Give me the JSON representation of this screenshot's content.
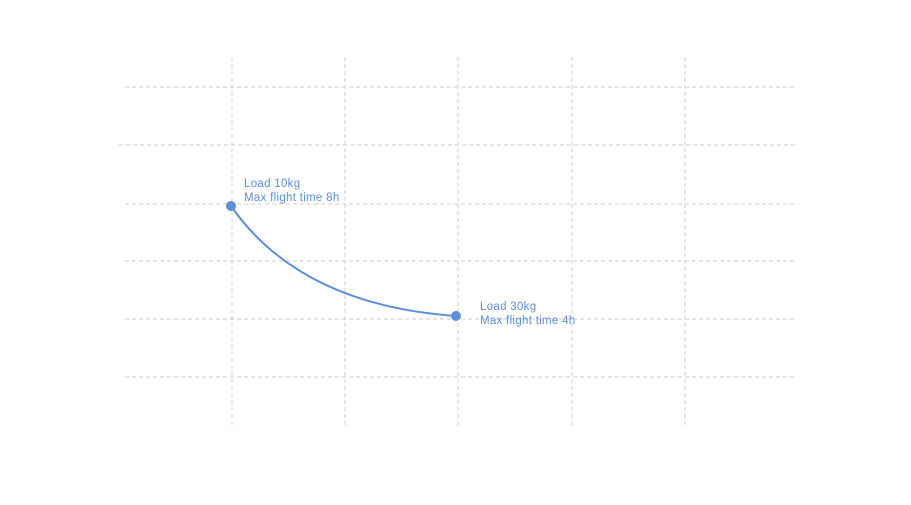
{
  "annotations": [
    {
      "lines": [
        "Load 10kg",
        "Max flight time 8h"
      ]
    },
    {
      "lines": [
        "Load 30kg",
        "Max flight time 4h"
      ]
    }
  ]
}
